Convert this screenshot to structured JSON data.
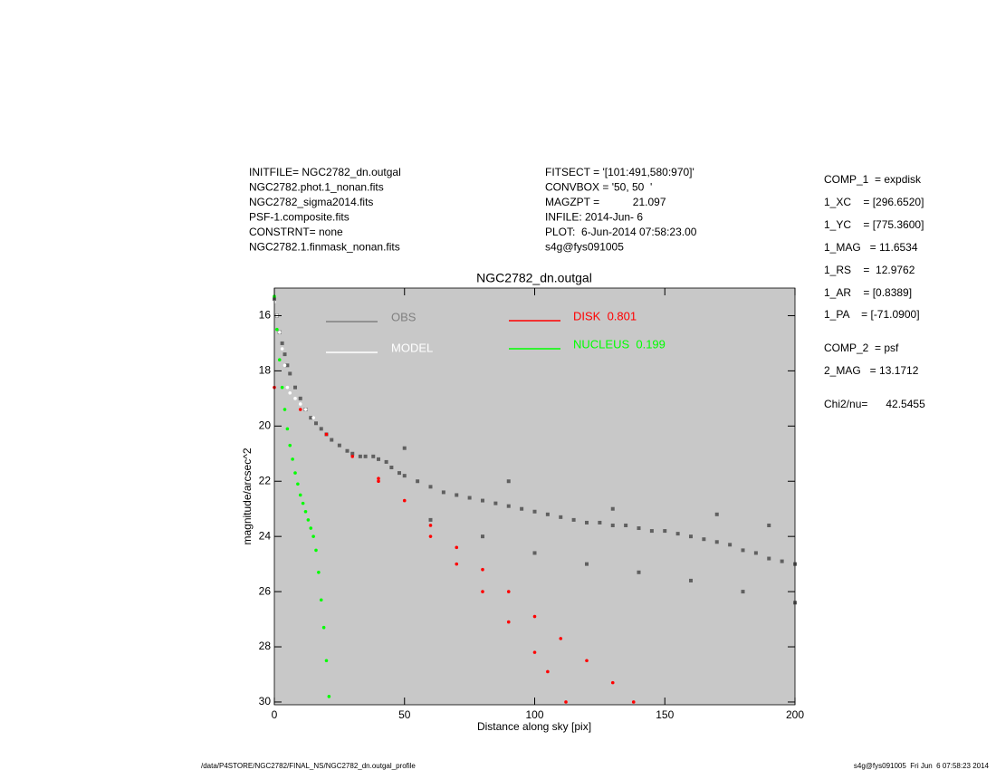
{
  "header": {
    "left": [
      "INITFILE= NGC2782_dn.outgal",
      "NGC2782.phot.1_nonan.fits",
      "NGC2782_sigma2014.fits",
      "PSF-1.composite.fits",
      "CONSTRNT= none",
      "NGC2782.1.finmask_nonan.fits"
    ],
    "middle": [
      "FITSECT = '[101:491,580:970]'",
      "CONVBOX = '50, 50  '",
      "MAGZPT =           21.097",
      "INFILE: 2014-Jun- 6",
      "PLOT:  6-Jun-2014 07:58:23.00",
      "s4g@fys091005"
    ],
    "right": [
      "COMP_1  = expdisk",
      "1_XC    = [296.6520]",
      "1_YC    = [775.3600]",
      "1_MAG   = 11.6534",
      "1_RS    =  12.9762",
      "1_AR    = [0.8389]",
      "1_PA    = [-71.0900]",
      "COMP_2  = psf",
      "2_MAG   = 13.1712",
      "Chi2/nu=      42.5455"
    ]
  },
  "footer": {
    "left": "/data/P4STORE/NGC2782/FINAL_NS/NGC2782_dn.outgal_profile",
    "right": "s4g@fys091005  Fri Jun  6 07:58:23 2014"
  },
  "chart_data": {
    "type": "scatter",
    "title": "NGC2782_dn.outgal",
    "x_label": "Distance along sky [pix]",
    "y_label": "magnitude/arcsec^2",
    "xlim": [
      0,
      200
    ],
    "xticks": [
      0,
      50,
      100,
      150,
      200
    ],
    "ylim": [
      30.1,
      15
    ],
    "yticks": [
      16,
      18,
      20,
      22,
      24,
      26,
      28,
      30
    ],
    "background": "#c8c8c8",
    "series": [
      {
        "name": "OBS",
        "color": "#606060",
        "legend_color": "#808080",
        "x": [
          0,
          1,
          2,
          3,
          4,
          5,
          6,
          8,
          10,
          12,
          14,
          16,
          18,
          20,
          22,
          25,
          28,
          30,
          33,
          35,
          38,
          40,
          43,
          45,
          48,
          50,
          55,
          60,
          65,
          70,
          75,
          80,
          85,
          90,
          95,
          100,
          105,
          110,
          115,
          120,
          125,
          130,
          135,
          140,
          145,
          150,
          155,
          160,
          165,
          170,
          175,
          180,
          185,
          190,
          195,
          200,
          60,
          80,
          100,
          120,
          140,
          160,
          180,
          200,
          50,
          90,
          130,
          170,
          190
        ],
        "y": [
          15.4,
          16.0,
          16.6,
          17.0,
          17.4,
          17.8,
          18.1,
          18.6,
          19.0,
          19.4,
          19.7,
          19.9,
          20.1,
          20.3,
          20.5,
          20.7,
          20.9,
          21.0,
          21.1,
          21.1,
          21.1,
          21.2,
          21.3,
          21.5,
          21.7,
          21.8,
          22.0,
          22.2,
          22.4,
          22.5,
          22.6,
          22.7,
          22.8,
          22.9,
          23.0,
          23.1,
          23.2,
          23.3,
          23.4,
          23.5,
          23.5,
          23.6,
          23.6,
          23.7,
          23.8,
          23.8,
          23.9,
          24.0,
          24.1,
          24.2,
          24.3,
          24.5,
          24.6,
          24.8,
          24.9,
          25.0,
          23.4,
          24.0,
          24.6,
          25.0,
          25.3,
          25.6,
          26.0,
          26.4,
          20.8,
          22.0,
          23.0,
          23.2,
          23.6
        ]
      },
      {
        "name": "MODEL",
        "color": "#ffffff",
        "legend_color": "#ffffff",
        "x": [
          0,
          1,
          2,
          3,
          4,
          5,
          6,
          8,
          10,
          12,
          15
        ],
        "y": [
          15.5,
          16.0,
          16.6,
          17.2,
          17.8,
          18.6,
          18.8,
          19.0,
          19.2,
          19.4,
          19.7
        ]
      },
      {
        "name": "DISK  0.801",
        "color": "#ff0000",
        "legend_color": "#ff0000",
        "x": [
          0,
          10,
          20,
          30,
          40,
          50,
          60,
          70,
          80,
          90,
          100,
          110,
          120,
          130,
          138,
          40,
          60,
          80,
          100,
          112,
          70,
          90,
          105
        ],
        "y": [
          18.6,
          19.4,
          20.3,
          21.1,
          21.9,
          22.7,
          23.6,
          24.4,
          25.2,
          26.0,
          26.9,
          27.7,
          28.5,
          29.3,
          30.0,
          22.0,
          24.0,
          26.0,
          28.2,
          30.0,
          25.0,
          27.1,
          28.9
        ]
      },
      {
        "name": "NUCLEUS  0.199",
        "color": "#00ff00",
        "legend_color": "#00ff00",
        "x": [
          0,
          1,
          2,
          3,
          4,
          5,
          6,
          7,
          8,
          9,
          10,
          11,
          12,
          13,
          14,
          15,
          16,
          17,
          18,
          19,
          20,
          21
        ],
        "y": [
          15.3,
          16.5,
          17.6,
          18.6,
          19.4,
          20.1,
          20.7,
          21.2,
          21.7,
          22.1,
          22.5,
          22.8,
          23.1,
          23.4,
          23.7,
          24.0,
          24.5,
          25.3,
          26.3,
          27.3,
          28.5,
          29.8
        ]
      }
    ]
  }
}
